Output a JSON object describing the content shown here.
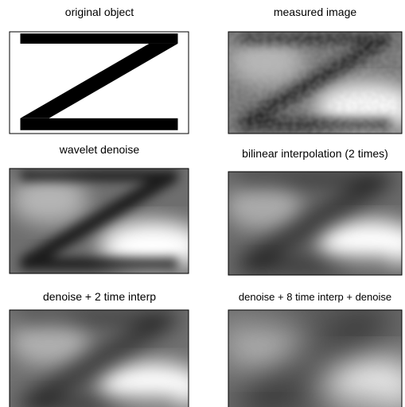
{
  "panels": [
    {
      "title": "original object"
    },
    {
      "title": "measured image"
    },
    {
      "title": "wavelet denoise"
    },
    {
      "title": "bilinear interpolation (2 times)"
    },
    {
      "title": "denoise + 2 time interp"
    },
    {
      "title": "denoise + 8 time interp + denoise"
    }
  ]
}
